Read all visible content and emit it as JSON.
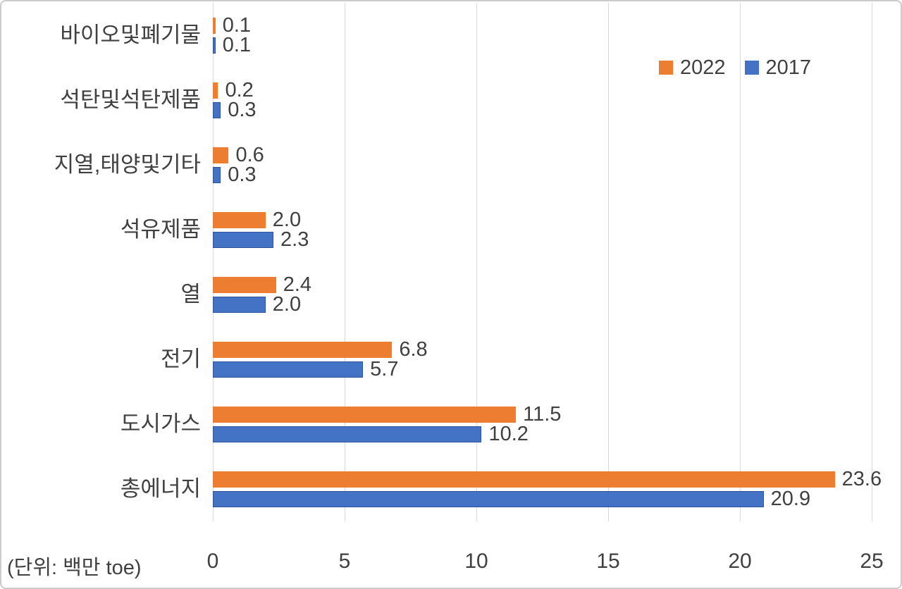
{
  "chart_data": {
    "type": "bar",
    "orientation": "horizontal",
    "title": "",
    "xlabel": "(단위: 백만 toe)",
    "ylabel": "",
    "categories": [
      "바이오및폐기물",
      "석탄및석탄제품",
      "지열,태양및기타",
      "석유제품",
      "열",
      "전기",
      "도시가스",
      "총에너지"
    ],
    "series": [
      {
        "name": "2022",
        "color": "#ED7D31",
        "values": [
          0.1,
          0.2,
          0.6,
          2.0,
          2.4,
          6.8,
          11.5,
          23.6
        ]
      },
      {
        "name": "2017",
        "color": "#4472C4",
        "border_color": "#2F5597",
        "values": [
          0.1,
          0.3,
          0.3,
          2.3,
          2.0,
          5.7,
          10.2,
          20.9
        ]
      }
    ],
    "x_ticks": [
      "0",
      "5",
      "10",
      "15",
      "20",
      "25"
    ],
    "xlim": [
      0,
      25.6
    ],
    "grid": true,
    "gridline_color": "#D9D9D9",
    "text_color": "#404040",
    "legend_position": "top-right",
    "data_labels_decimals": 1
  },
  "legend": {
    "items": [
      {
        "label": "2022",
        "color": "#ED7D31"
      },
      {
        "label": "2017",
        "color": "#4472C4"
      }
    ]
  },
  "axis": {
    "unit_label": "(단위: 백만 toe)"
  }
}
